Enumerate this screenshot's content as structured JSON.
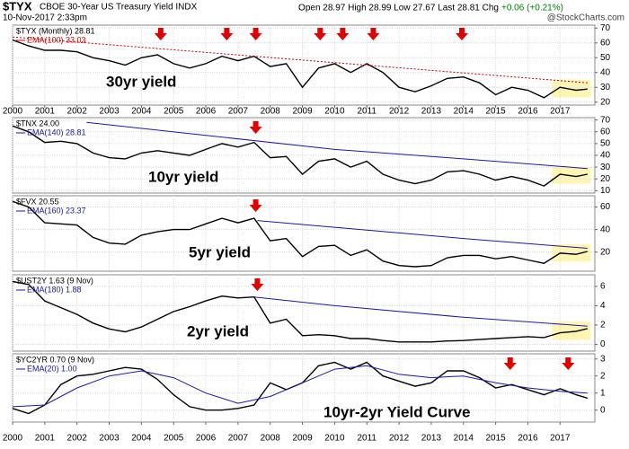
{
  "header": {
    "symbol": "$TYX",
    "name": "CBOE 30-Year US Treasury Yield INDX",
    "date": "10-Nov-2017 2:33pm",
    "quote": "Open 28.97  High 28.99  Low 27.67  Last 28.81  Chg",
    "change": "+0.06 (+0.21%)",
    "watermark": "@StockCharts.com"
  },
  "chart_data": [
    {
      "type": "line",
      "label": "30yr yield",
      "x": [
        2000,
        2000.5,
        2001,
        2001.5,
        2002,
        2002.5,
        2003,
        2003.5,
        2004,
        2004.5,
        2005,
        2005.5,
        2006,
        2006.5,
        2007,
        2007.5,
        2008,
        2008.5,
        2009,
        2009.5,
        2010,
        2010.5,
        2011,
        2011.5,
        2012,
        2012.5,
        2013,
        2013.5,
        2014,
        2014.5,
        2015,
        2015.5,
        2016,
        2016.5,
        2017,
        2017.5,
        2017.85
      ],
      "series": [
        {
          "name": "$TYX (Monthly) 28.81",
          "color": "#000000",
          "values": [
            62,
            58,
            55,
            55,
            54,
            50,
            48,
            45,
            50,
            52,
            46,
            43,
            46,
            51,
            48,
            51,
            44,
            46,
            30,
            43,
            46,
            40,
            46,
            40,
            30,
            27,
            31,
            36,
            37,
            33,
            25,
            30,
            28,
            23,
            30,
            28,
            28.81
          ]
        },
        {
          "name": "EMA(100) 33.03",
          "color": "#cc0000",
          "dashed": true,
          "x": [
            2000,
            2017.85
          ],
          "values": [
            64,
            33.03
          ]
        }
      ],
      "xlim": [
        2000,
        2018.08
      ],
      "xticks": [
        2000,
        2001,
        2002,
        2003,
        2004,
        2005,
        2006,
        2007,
        2008,
        2009,
        2010,
        2011,
        2012,
        2013,
        2014,
        2015,
        2016,
        2017
      ],
      "ylim": [
        18,
        72
      ],
      "yticks": [
        20,
        30,
        40,
        50,
        60,
        70
      ],
      "grid": true
    },
    {
      "type": "line",
      "label": "10yr yield",
      "x": [
        2000,
        2000.5,
        2001,
        2001.5,
        2002,
        2002.5,
        2003,
        2003.5,
        2004,
        2004.5,
        2005,
        2005.5,
        2006,
        2006.5,
        2007,
        2007.5,
        2008,
        2008.5,
        2009,
        2009.5,
        2010,
        2010.5,
        2011,
        2011.5,
        2012,
        2012.5,
        2013,
        2013.5,
        2014,
        2014.5,
        2015,
        2015.5,
        2016,
        2016.5,
        2017,
        2017.5,
        2017.85
      ],
      "series": [
        {
          "name": "$TNX 24.00",
          "color": "#000000",
          "values": [
            65,
            60,
            51,
            52,
            50,
            42,
            38,
            37,
            42,
            44,
            42,
            40,
            45,
            50,
            47,
            51,
            38,
            39,
            24,
            35,
            37,
            30,
            35,
            24,
            19,
            16,
            19,
            26,
            27,
            24,
            19,
            22,
            19,
            14,
            24,
            22,
            24
          ]
        },
        {
          "name": "EMA(140) 28.81",
          "color": "#1a1aa0",
          "x": [
            2002.3,
            2006,
            2010,
            2014,
            2017.85
          ],
          "values": [
            68,
            57,
            45,
            37,
            28.81
          ]
        }
      ],
      "xlim": [
        2000,
        2018.08
      ],
      "ylim": [
        8,
        72
      ],
      "yticks": [
        10,
        20,
        30,
        40,
        50,
        60,
        70
      ],
      "grid": true
    },
    {
      "type": "line",
      "label": "5yr yield",
      "x": [
        2000,
        2000.5,
        2001,
        2001.5,
        2002,
        2002.5,
        2003,
        2003.5,
        2004,
        2004.5,
        2005,
        2005.5,
        2006,
        2006.5,
        2007,
        2007.5,
        2008,
        2008.5,
        2009,
        2009.5,
        2010,
        2010.5,
        2011,
        2011.5,
        2012,
        2012.5,
        2013,
        2013.5,
        2014,
        2014.5,
        2015,
        2015.5,
        2016,
        2016.5,
        2017,
        2017.5,
        2017.85
      ],
      "series": [
        {
          "name": "$FVX 20.55",
          "color": "#000000",
          "values": [
            65,
            60,
            46,
            45,
            44,
            33,
            28,
            27,
            35,
            38,
            40,
            40,
            45,
            50,
            46,
            50,
            30,
            32,
            16,
            25,
            26,
            17,
            22,
            12,
            8,
            7,
            8,
            15,
            17,
            17,
            14,
            16,
            13,
            10,
            19,
            18,
            20.55
          ]
        },
        {
          "name": "EMA(160) 23.37",
          "color": "#1a1aa0",
          "x": [
            2007.6,
            2010,
            2014,
            2017.85
          ],
          "values": [
            48,
            42,
            32,
            23.37
          ]
        }
      ],
      "xlim": [
        2000,
        2018.08
      ],
      "ylim": [
        3,
        70
      ],
      "yticks": [
        20,
        40,
        60
      ],
      "grid": true
    },
    {
      "type": "line",
      "label": "2yr yield",
      "x": [
        2000,
        2000.5,
        2001,
        2001.5,
        2002,
        2002.5,
        2003,
        2003.5,
        2004,
        2004.5,
        2005,
        2005.5,
        2006,
        2006.5,
        2007,
        2007.5,
        2008,
        2008.5,
        2009,
        2009.5,
        2010,
        2010.5,
        2011,
        2011.5,
        2012,
        2012.5,
        2013,
        2013.5,
        2014,
        2014.5,
        2015,
        2015.5,
        2016,
        2016.5,
        2017,
        2017.5,
        2017.85
      ],
      "series": [
        {
          "name": "$UST2Y 1.63 (9 Nov)",
          "color": "#000000",
          "values": [
            6.5,
            6.2,
            4.5,
            3.8,
            3.1,
            2.2,
            1.6,
            1.3,
            1.8,
            2.6,
            3.4,
            3.9,
            4.5,
            5.0,
            4.8,
            4.9,
            2.2,
            2.6,
            0.9,
            1.0,
            0.9,
            0.6,
            0.6,
            0.4,
            0.25,
            0.25,
            0.25,
            0.35,
            0.4,
            0.5,
            0.6,
            0.7,
            0.8,
            0.7,
            1.2,
            1.35,
            1.63
          ]
        },
        {
          "name": "EMA(180) 1.88",
          "color": "#1a1aa0",
          "x": [
            2007.5,
            2010,
            2014,
            2017.85
          ],
          "values": [
            4.9,
            4.0,
            2.8,
            1.88
          ]
        }
      ],
      "xlim": [
        2000,
        2018.08
      ],
      "ylim": [
        -0.7,
        7.2
      ],
      "yticks": [
        0,
        2,
        4,
        6
      ],
      "grid": true
    },
    {
      "type": "line",
      "label": "10yr-2yr Yield Curve",
      "x": [
        2000,
        2000.5,
        2001,
        2001.5,
        2002,
        2002.5,
        2003,
        2003.5,
        2004,
        2004.5,
        2005,
        2005.5,
        2006,
        2006.5,
        2007,
        2007.5,
        2008,
        2008.5,
        2009,
        2009.5,
        2010,
        2010.5,
        2011,
        2011.5,
        2012,
        2012.5,
        2013,
        2013.5,
        2014,
        2014.5,
        2015,
        2015.5,
        2016,
        2016.5,
        2017,
        2017.5,
        2017.85
      ],
      "series": [
        {
          "name": "$YC2YR 0.70 (9 Nov)",
          "color": "#000000",
          "values": [
            0.1,
            -0.2,
            0.3,
            1.5,
            2.0,
            2.1,
            2.3,
            2.5,
            2.4,
            1.8,
            0.9,
            0.2,
            0.0,
            0.0,
            0.1,
            0.3,
            1.6,
            1.2,
            1.6,
            2.6,
            2.8,
            2.4,
            2.8,
            2.0,
            1.7,
            1.4,
            1.6,
            2.3,
            2.3,
            1.9,
            1.3,
            1.5,
            1.2,
            0.9,
            1.25,
            0.9,
            0.7
          ]
        },
        {
          "name": "EMA(20) 1.00",
          "color": "#1a1aa0",
          "x": [
            2000,
            2001,
            2002,
            2003,
            2004,
            2005,
            2006,
            2007,
            2008,
            2009,
            2010,
            2011,
            2012,
            2013,
            2014,
            2015,
            2016,
            2017,
            2017.85
          ],
          "values": [
            0.2,
            0.3,
            1.3,
            2.0,
            2.3,
            1.9,
            1.0,
            0.4,
            0.8,
            1.6,
            2.4,
            2.6,
            2.1,
            1.9,
            2.0,
            1.6,
            1.3,
            1.1,
            1.0
          ]
        }
      ],
      "xlim": [
        2000,
        2018.08
      ],
      "xticks": [
        2000,
        2001,
        2002,
        2003,
        2004,
        2005,
        2006,
        2007,
        2008,
        2009,
        2010,
        2011,
        2012,
        2013,
        2014,
        2015,
        2016,
        2017
      ],
      "ylim": [
        -0.7,
        3.3
      ],
      "yticks": [
        0,
        1,
        2,
        3
      ],
      "grid": true
    }
  ]
}
